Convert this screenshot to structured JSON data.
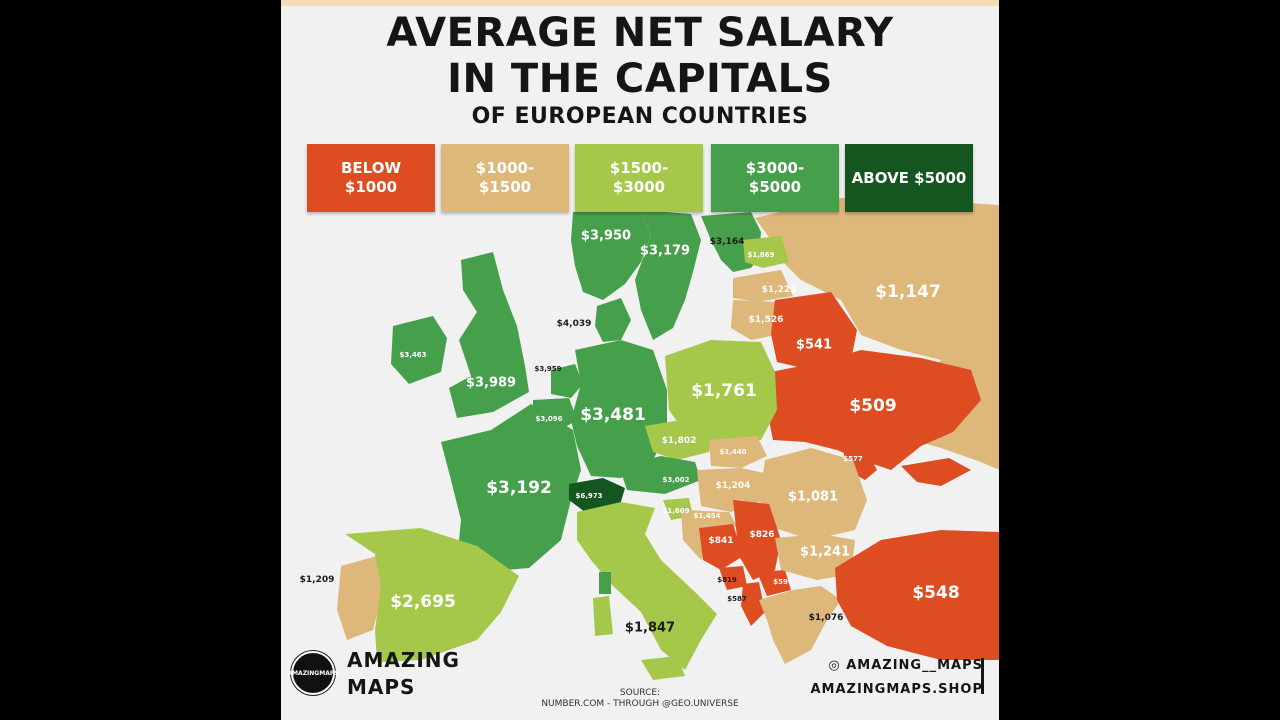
{
  "title": {
    "line1": "AVERAGE NET SALARY",
    "line2": "IN THE CAPITALS",
    "line3": "OF EUROPEAN COUNTRIES"
  },
  "colors": {
    "below_1000": "#de4c22",
    "1000_1500": "#deb77a",
    "1500_3000": "#a6c84a",
    "3000_5000": "#46a04b",
    "above_5000": "#15551f",
    "background": "#f1f1f1",
    "sea": "#f1f1f1"
  },
  "legend": [
    {
      "line1": "BELOW $1000",
      "line2": "",
      "color": "#de4c22"
    },
    {
      "line1": "$1000-",
      "line2": "$1500",
      "color": "#deb77a"
    },
    {
      "line1": "$1500-",
      "line2": "$3000",
      "color": "#a6c84a"
    },
    {
      "line1": "$3000-",
      "line2": "$5000",
      "color": "#46a04b"
    },
    {
      "line1": "ABOVE $5000",
      "line2": "",
      "color": "#15551f"
    }
  ],
  "values": {
    "norway": "$3,950",
    "sweden": "$3,179",
    "finland": "$3,164",
    "estonia": "$1,869",
    "latvia": "$1,223",
    "lithuania": "$1,526",
    "russia": "$1,147",
    "denmark": "$4,039",
    "ireland": "$3,463",
    "uk": "$3,989",
    "netherlands": "$3,959",
    "belgium": "$3,096",
    "germany": "$3,481",
    "poland": "$1,761",
    "belarus": "$541",
    "ukraine": "$509",
    "moldova": "$577",
    "czechia": "$1,802",
    "slovakia": "$1,440",
    "austria": "$3,002",
    "hungary": "$1,204",
    "romania": "$1,081",
    "france": "$3,192",
    "switzerland": "$6,973",
    "slovenia": "$1,609",
    "croatia": "$1,454",
    "bosnia": "$841",
    "serbia": "$826",
    "bulgaria": "$1,241",
    "montenegro": "$819",
    "albania": "$587",
    "north_macedonia": "$596",
    "greece": "$1,076",
    "turkey": "$548",
    "portugal": "$1,209",
    "spain": "$2,695",
    "italy": "$1,847"
  },
  "logo": {
    "line1": "AMAZING",
    "line2": "MAPS"
  },
  "brand": {
    "line1": "AMAZING",
    "line2": "MAPS"
  },
  "source": {
    "line1": "SOURCE:",
    "line2": "NUMBER.COM - THROUGH @GEO.UNIVERSE"
  },
  "social": {
    "instagram": "◎ AMAZING__MAPS",
    "shop": "AMAZINGMAPS.SHOP"
  }
}
